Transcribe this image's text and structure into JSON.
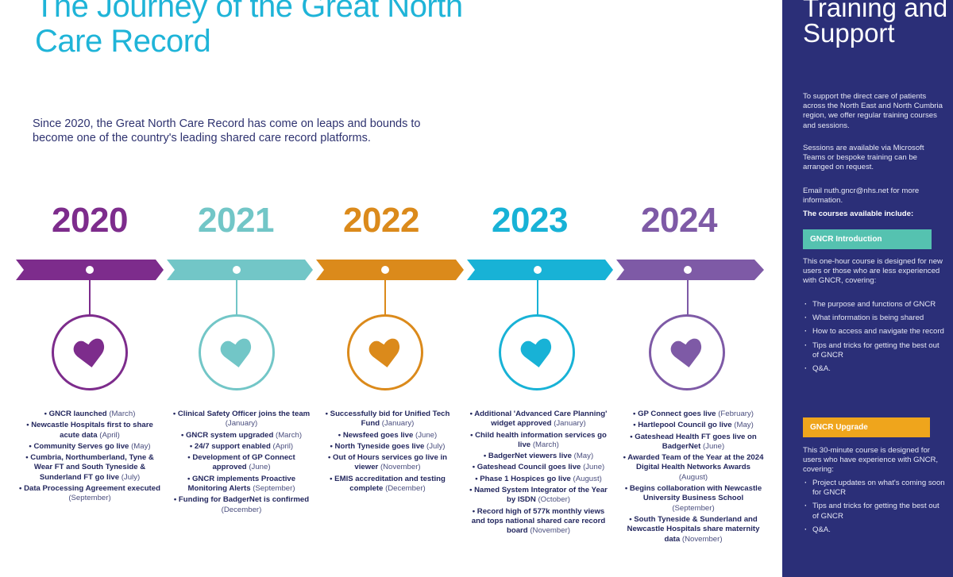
{
  "title": "The Journey of the Great North Care Record",
  "intro": "Since 2020, the Great North Care Record has come on leaps and bounds to become one of the country's leading shared care record platforms.",
  "colors": {
    "y2020": "#7d2c8c",
    "y2021": "#72c6c7",
    "y2022": "#db8a1b",
    "y2023": "#18b2d6",
    "y2024": "#7e5aa6",
    "panel": "#2b2f78"
  },
  "years": [
    {
      "year": "2020",
      "icon": "heart-icon",
      "events": [
        {
          "text": "GNCR launched",
          "date": "(March)"
        },
        {
          "text": "Newcastle Hospitals first to share acute data",
          "date": "(April)"
        },
        {
          "text": "Community Serves go live",
          "date": "(May)"
        },
        {
          "text": "Cumbria, Northumberland, Tyne & Wear FT and South Tyneside & Sunderland FT go live",
          "date": "(July)"
        },
        {
          "text": "Data Processing Agreement executed",
          "date": "(September)"
        }
      ]
    },
    {
      "year": "2021",
      "icon": "heart-icon",
      "events": [
        {
          "text": "Clinical Safety Officer joins the team",
          "date": "(January)"
        },
        {
          "text": "GNCR system upgraded",
          "date": "(March)"
        },
        {
          "text": "24/7 support enabled",
          "date": "(April)"
        },
        {
          "text": "Development of GP Connect approved",
          "date": "(June)"
        },
        {
          "text": "GNCR implements Proactive Monitoring Alerts",
          "date": "(September)"
        },
        {
          "text": "Funding for BadgerNet is confirmed",
          "date": "(December)"
        }
      ]
    },
    {
      "year": "2022",
      "icon": "heart-icon",
      "events": [
        {
          "text": "Successfully bid for Unified Tech Fund",
          "date": "(January)"
        },
        {
          "text": "Newsfeed goes live",
          "date": "(June)"
        },
        {
          "text": "North Tyneside goes live",
          "date": "(July)"
        },
        {
          "text": "Out of Hours services go live in viewer",
          "date": "(November)"
        },
        {
          "text": "EMIS accreditation and testing complete",
          "date": "(December)"
        }
      ]
    },
    {
      "year": "2023",
      "icon": "heart-icon",
      "events": [
        {
          "text": "Additional 'Advanced Care Planning' widget approved",
          "date": "(January)"
        },
        {
          "text": "Child health information services go live",
          "date": "(March)"
        },
        {
          "text": "BadgerNet viewers live",
          "date": "(May)"
        },
        {
          "text": "Gateshead Council goes live",
          "date": "(June)"
        },
        {
          "text": "Phase 1 Hospices go live",
          "date": "(August)"
        },
        {
          "text": "Named System Integrator of the Year by ISDN",
          "date": "(October)"
        },
        {
          "text": "Record high of 577k monthly views and tops national shared care record board",
          "date": "(November)"
        }
      ]
    },
    {
      "year": "2024",
      "icon": "heart-icon",
      "events": [
        {
          "text": "GP Connect goes live",
          "date": "(February)"
        },
        {
          "text": "Hartlepool Council go live",
          "date": "(May)"
        },
        {
          "text": "Gateshead Health FT goes live on BadgerNet",
          "date": "(June)"
        },
        {
          "text": "Awarded Team of the Year at the 2024 Digital Health Networks Awards",
          "date": "(August)"
        },
        {
          "text": "Begins collaboration with Newcastle University Business School",
          "date": "(September)"
        },
        {
          "text": "South Tyneside & Sunderland and Newcastle Hospitals share maternity data",
          "date": "(November)"
        }
      ]
    }
  ],
  "panel": {
    "title": "Training and Support",
    "para1": "To support the direct care of patients across the North East and North Cumbria region, we offer regular training courses and sessions.",
    "para2": "Sessions are available via Microsoft Teams or bespoke training can be arranged on request.",
    "para3": "Email nuth.gncr@nhs.net for more information.",
    "courses_heading": "The courses available include:",
    "intro_course": {
      "name": "GNCR Introduction",
      "color": "#55c2b0",
      "description": "This one-hour course is designed for new users or those who are less experienced with GNCR, covering:",
      "items": [
        "The purpose and functions of GNCR",
        "What information is being shared",
        "How to access and navigate the record",
        "Tips and tricks for getting the best out of GNCR",
        "Q&A."
      ]
    },
    "upgrade_course": {
      "name": "GNCR Upgrade",
      "color": "#efa51c",
      "description": "This 30-minute course is designed for users who have experience with GNCR, covering:",
      "items": [
        "Project updates on what's coming soon for GNCR",
        "Tips and tricks for getting the best out of GNCR",
        "Q&A."
      ]
    }
  }
}
